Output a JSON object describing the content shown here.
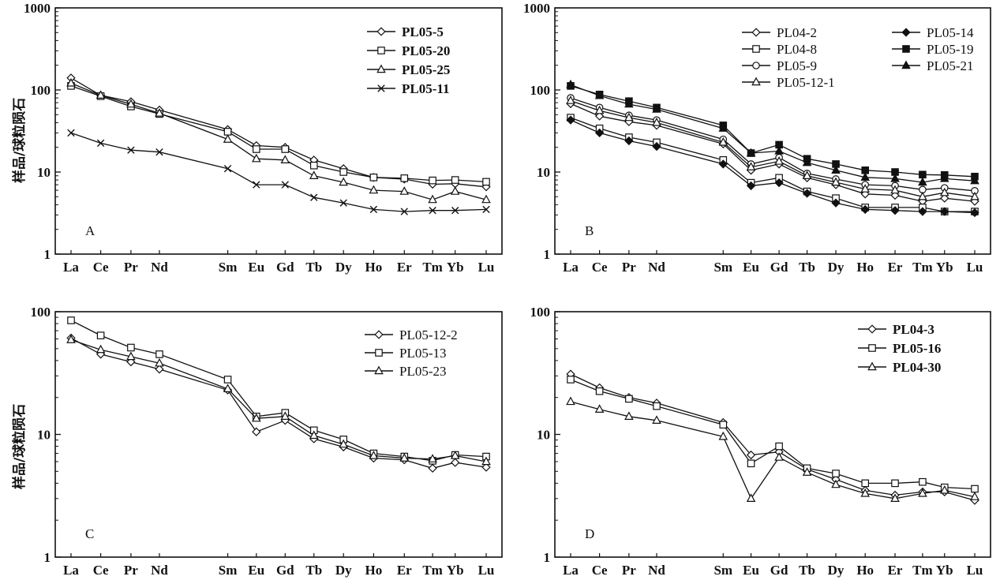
{
  "figure": {
    "ylabel": "样品/球粒陨石",
    "categories": [
      "La",
      "Ce",
      "Pr",
      "Nd",
      "Sm",
      "Eu",
      "Gd",
      "Tb",
      "Dy",
      "Ho",
      "Er",
      "Tm",
      "Yb",
      "Lu"
    ]
  },
  "chart_data": [
    {
      "type": "line",
      "panel": "A",
      "log_scale": true,
      "ylim": [
        1,
        1000
      ],
      "ytick_labels": [
        "1",
        "10",
        "100",
        "1000"
      ],
      "categories": [
        "La",
        "Ce",
        "Pr",
        "Nd",
        "Sm",
        "Eu",
        "Gd",
        "Tb",
        "Dy",
        "Ho",
        "Er",
        "Tm",
        "Yb",
        "Lu"
      ],
      "ylabel": "样品/球粒陨石",
      "legend_bold": true,
      "legend_position": "top-right",
      "series": [
        {
          "name": "PL05-5",
          "marker": "diamond-open",
          "values": [
            140,
            86,
            72,
            57,
            33,
            21,
            20,
            14,
            11,
            8.6,
            8.2,
            7.1,
            7.2,
            6.6
          ]
        },
        {
          "name": "PL05-20",
          "marker": "square-open",
          "values": [
            112,
            84,
            63,
            51,
            31,
            19,
            19,
            12,
            10,
            8.6,
            8.4,
            7.9,
            8.0,
            7.6
          ]
        },
        {
          "name": "PL05-25",
          "marker": "triangle-open",
          "values": [
            121,
            86,
            67,
            52,
            25,
            14.5,
            14,
            9,
            7.5,
            6,
            5.8,
            4.6,
            5.8,
            4.6
          ]
        },
        {
          "name": "PL05-11",
          "marker": "cross",
          "values": [
            30,
            22.5,
            18.5,
            17.5,
            11,
            7,
            7,
            4.9,
            4.2,
            3.5,
            3.3,
            3.4,
            3.4,
            3.5
          ]
        }
      ]
    },
    {
      "type": "line",
      "panel": "B",
      "log_scale": true,
      "ylim": [
        1,
        1000
      ],
      "ytick_labels": [
        "1",
        "10",
        "100",
        "1000"
      ],
      "categories": [
        "La",
        "Ce",
        "Pr",
        "Nd",
        "Sm",
        "Eu",
        "Gd",
        "Tb",
        "Dy",
        "Ho",
        "Er",
        "Tm",
        "Yb",
        "Lu"
      ],
      "legend_bold": false,
      "legend_position": "top-right",
      "series": [
        {
          "name": "PL04-2",
          "marker": "diamond-open",
          "values": [
            68,
            48,
            41,
            37,
            22,
            10.5,
            12.5,
            8.5,
            7,
            5.4,
            5.2,
            4.4,
            4.8,
            4.4
          ]
        },
        {
          "name": "PL04-8",
          "marker": "square-open",
          "values": [
            46,
            34,
            26.5,
            23,
            14,
            7.4,
            8.5,
            5.8,
            4.8,
            3.7,
            3.7,
            3.7,
            3.3,
            3.3
          ]
        },
        {
          "name": "PL05-9",
          "marker": "circle-open",
          "values": [
            80,
            61,
            49,
            43,
            25,
            12.5,
            15,
            9.6,
            8.2,
            7,
            6.8,
            6.1,
            6.4,
            5.9
          ]
        },
        {
          "name": "PL05-12-1",
          "marker": "triangle-open",
          "values": [
            74,
            56,
            46,
            40,
            23,
            11.5,
            13.5,
            9,
            7.5,
            6.2,
            6,
            5,
            5.6,
            5
          ]
        },
        {
          "name": "PL05-14",
          "marker": "diamond-filled",
          "values": [
            43,
            30,
            24,
            20.5,
            12.5,
            6.8,
            7.4,
            5.5,
            4.2,
            3.5,
            3.4,
            3.3,
            3.3,
            3.2
          ]
        },
        {
          "name": "PL05-19",
          "marker": "square-filled",
          "values": [
            112,
            88,
            73,
            61,
            37,
            17,
            21.5,
            14.5,
            12.5,
            10.5,
            10,
            9.3,
            9.2,
            8.8
          ]
        },
        {
          "name": "PL05-21",
          "marker": "triangle-filled",
          "values": [
            116,
            85,
            67,
            58,
            34,
            17,
            18,
            13,
            10.5,
            8.6,
            8.3,
            7.5,
            8.3,
            7.8
          ]
        }
      ]
    },
    {
      "type": "line",
      "panel": "C",
      "log_scale": true,
      "ylim": [
        1,
        100
      ],
      "ytick_labels": [
        "1",
        "10",
        "100"
      ],
      "categories": [
        "La",
        "Ce",
        "Pr",
        "Nd",
        "Sm",
        "Eu",
        "Gd",
        "Tb",
        "Dy",
        "Ho",
        "Er",
        "Tm",
        "Yb",
        "Lu"
      ],
      "ylabel": "样品/球粒陨石",
      "legend_bold": false,
      "legend_position": "top-right",
      "series": [
        {
          "name": "PL05-12-2",
          "marker": "diamond-open",
          "values": [
            61,
            45,
            39,
            34,
            23,
            10.5,
            13,
            9.2,
            7.9,
            6.4,
            6.2,
            5.3,
            5.9,
            5.4
          ]
        },
        {
          "name": "PL05-13",
          "marker": "square-open",
          "values": [
            85,
            64,
            51,
            45,
            28,
            14,
            15,
            10.8,
            9.1,
            7,
            6.6,
            6.1,
            6.8,
            6.6
          ]
        },
        {
          "name": "PL05-23",
          "marker": "triangle-open",
          "values": [
            59,
            49,
            43,
            38,
            23.5,
            13.5,
            14,
            9.8,
            8.3,
            6.7,
            6.4,
            6.3,
            6.7,
            6
          ]
        }
      ]
    },
    {
      "type": "line",
      "panel": "D",
      "log_scale": true,
      "ylim": [
        1,
        100
      ],
      "ytick_labels": [
        "1",
        "10",
        "100"
      ],
      "categories": [
        "La",
        "Ce",
        "Pr",
        "Nd",
        "Sm",
        "Eu",
        "Gd",
        "Tb",
        "Dy",
        "Ho",
        "Er",
        "Tm",
        "Yb",
        "Lu"
      ],
      "legend_bold": true,
      "legend_position": "top-right",
      "series": [
        {
          "name": "PL04-3",
          "marker": "diamond-open",
          "values": [
            31,
            24,
            20,
            18,
            12.5,
            6.8,
            7.2,
            5.2,
            4.3,
            3.5,
            3.2,
            3.4,
            3.4,
            2.9
          ]
        },
        {
          "name": "PL05-16",
          "marker": "square-open",
          "values": [
            28,
            22.5,
            19.5,
            17,
            12,
            5.8,
            8,
            5.3,
            4.8,
            4,
            4,
            4.1,
            3.7,
            3.6
          ]
        },
        {
          "name": "PL04-30",
          "marker": "triangle-open",
          "values": [
            18.5,
            16,
            14,
            13,
            9.6,
            3,
            6.5,
            4.9,
            3.9,
            3.3,
            3,
            3.3,
            3.5,
            3.1
          ]
        }
      ]
    }
  ]
}
